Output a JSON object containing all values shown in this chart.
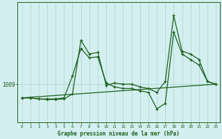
{
  "xlabel": "Graphe pression niveau de la mer (hPa)",
  "background_color": "#d4efef",
  "plot_bg_color": "#d4efef",
  "grid_color": "#b0d8d8",
  "line_color": "#1a5e1a",
  "marker_color": "#1a5e1a",
  "y_label_value": 1009,
  "x_ticks": [
    0,
    1,
    2,
    3,
    4,
    5,
    6,
    7,
    8,
    9,
    10,
    11,
    12,
    13,
    14,
    15,
    16,
    17,
    18,
    19,
    20,
    21,
    22,
    23
  ],
  "series1_x": [
    0,
    1,
    2,
    3,
    4,
    5,
    6,
    7,
    8,
    9,
    10,
    11,
    12,
    13,
    14,
    15,
    16,
    17,
    18,
    19,
    20,
    21,
    22,
    23
  ],
  "series1_y": [
    1006.5,
    1006.5,
    1006.3,
    1006.2,
    1006.2,
    1006.3,
    1007.2,
    1017.0,
    1014.5,
    1014.8,
    1008.8,
    1009.2,
    1009.0,
    1009.0,
    1008.5,
    1008.2,
    1007.5,
    1009.5,
    1021.5,
    1015.0,
    1014.5,
    1013.5,
    1009.5,
    1009.0
  ],
  "series2_x": [
    0,
    1,
    2,
    3,
    4,
    5,
    6,
    7,
    8,
    9,
    10,
    11,
    12,
    13,
    14,
    15,
    16,
    17,
    18,
    19,
    20,
    21,
    22,
    23
  ],
  "series2_y": [
    1006.5,
    1006.5,
    1006.3,
    1006.3,
    1006.3,
    1006.5,
    1010.5,
    1015.5,
    1013.8,
    1014.0,
    1009.2,
    1008.5,
    1008.2,
    1008.2,
    1007.8,
    1007.5,
    1004.5,
    1005.5,
    1018.5,
    1014.5,
    1013.5,
    1012.5,
    1009.5,
    1009.0
  ],
  "series3_x": [
    0,
    23
  ],
  "series3_y": [
    1006.5,
    1009.0
  ],
  "ylim": [
    1002.0,
    1024.0
  ],
  "xlim": [
    -0.5,
    23.5
  ]
}
